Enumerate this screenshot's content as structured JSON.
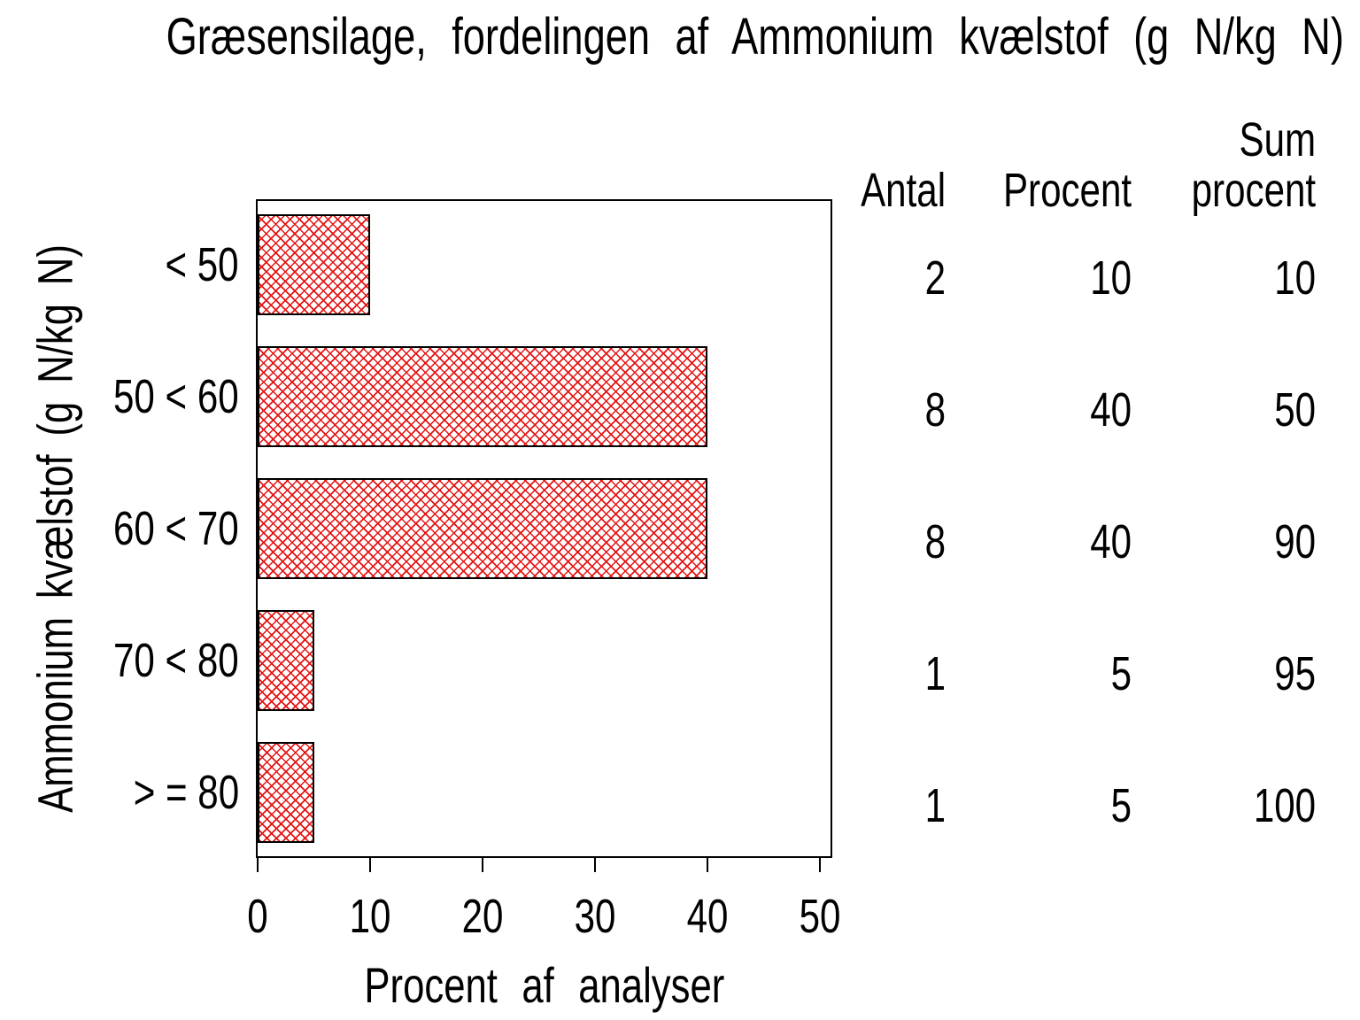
{
  "page": {
    "background": "#ffffff",
    "text_color": "#000000"
  },
  "chart_data": {
    "type": "bar",
    "orientation": "horizontal",
    "title": "Græsensilage, fordelingen af Ammonium kvælstof (g N/kg N)",
    "xlabel": "Procent af analyser",
    "ylabel": "Ammonium kvælstof (g N/kg N)",
    "categories": [
      "< 50",
      "50 < 60",
      "60 < 70",
      "70 < 80",
      "> = 80"
    ],
    "values": [
      10,
      40,
      40,
      5,
      5
    ],
    "xlim": [
      0,
      50
    ],
    "xticks": [
      0,
      10,
      20,
      30,
      40,
      50
    ],
    "grid": false,
    "legend": "none",
    "bar_fill_pattern": "crosshatch",
    "bar_pattern_color": "#e31414",
    "bar_border_color": "#000000",
    "table": {
      "col_headers": [
        [
          "Antal"
        ],
        [
          "Procent"
        ],
        [
          "Sum",
          "procent"
        ]
      ],
      "rows": [
        [
          2,
          10,
          10
        ],
        [
          8,
          40,
          50
        ],
        [
          8,
          40,
          90
        ],
        [
          1,
          5,
          95
        ],
        [
          1,
          5,
          100
        ]
      ]
    }
  }
}
